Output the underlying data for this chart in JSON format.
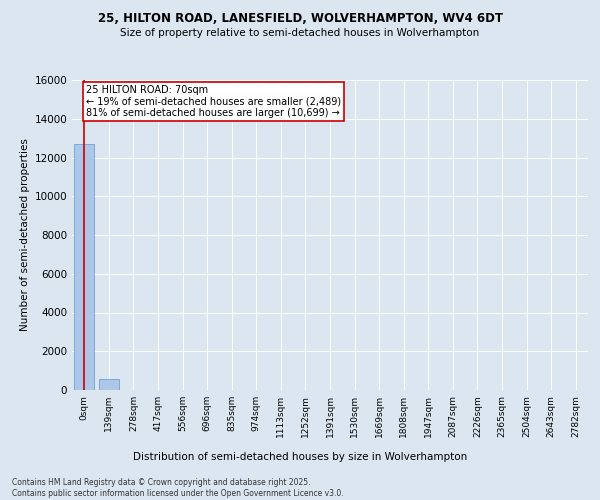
{
  "title_line1": "25, HILTON ROAD, LANESFIELD, WOLVERHAMPTON, WV4 6DT",
  "title_line2": "Size of property relative to semi-detached houses in Wolverhampton",
  "xlabel": "Distribution of semi-detached houses by size in Wolverhampton",
  "ylabel": "Number of semi-detached properties",
  "footnote": "Contains HM Land Registry data © Crown copyright and database right 2025.\nContains public sector information licensed under the Open Government Licence v3.0.",
  "bar_labels": [
    "0sqm",
    "139sqm",
    "278sqm",
    "417sqm",
    "556sqm",
    "696sqm",
    "835sqm",
    "974sqm",
    "1113sqm",
    "1252sqm",
    "1391sqm",
    "1530sqm",
    "1669sqm",
    "1808sqm",
    "1947sqm",
    "2087sqm",
    "2226sqm",
    "2365sqm",
    "2504sqm",
    "2643sqm",
    "2782sqm"
  ],
  "bar_values": [
    12700,
    550,
    0,
    0,
    0,
    0,
    0,
    0,
    0,
    0,
    0,
    0,
    0,
    0,
    0,
    0,
    0,
    0,
    0,
    0,
    0
  ],
  "bar_color": "#aec6e8",
  "bar_edge_color": "#5b9bd5",
  "ylim": [
    0,
    16000
  ],
  "yticks": [
    0,
    2000,
    4000,
    6000,
    8000,
    10000,
    12000,
    14000,
    16000
  ],
  "property_size_sqm": 70,
  "property_bar_index": 0,
  "annotation_title": "25 HILTON ROAD: 70sqm",
  "annotation_line1": "← 19% of semi-detached houses are smaller (2,489)",
  "annotation_line2": "81% of semi-detached houses are larger (10,699) →",
  "annotation_color": "#cc0000",
  "bg_color": "#dce6f1",
  "grid_color": "#ffffff"
}
